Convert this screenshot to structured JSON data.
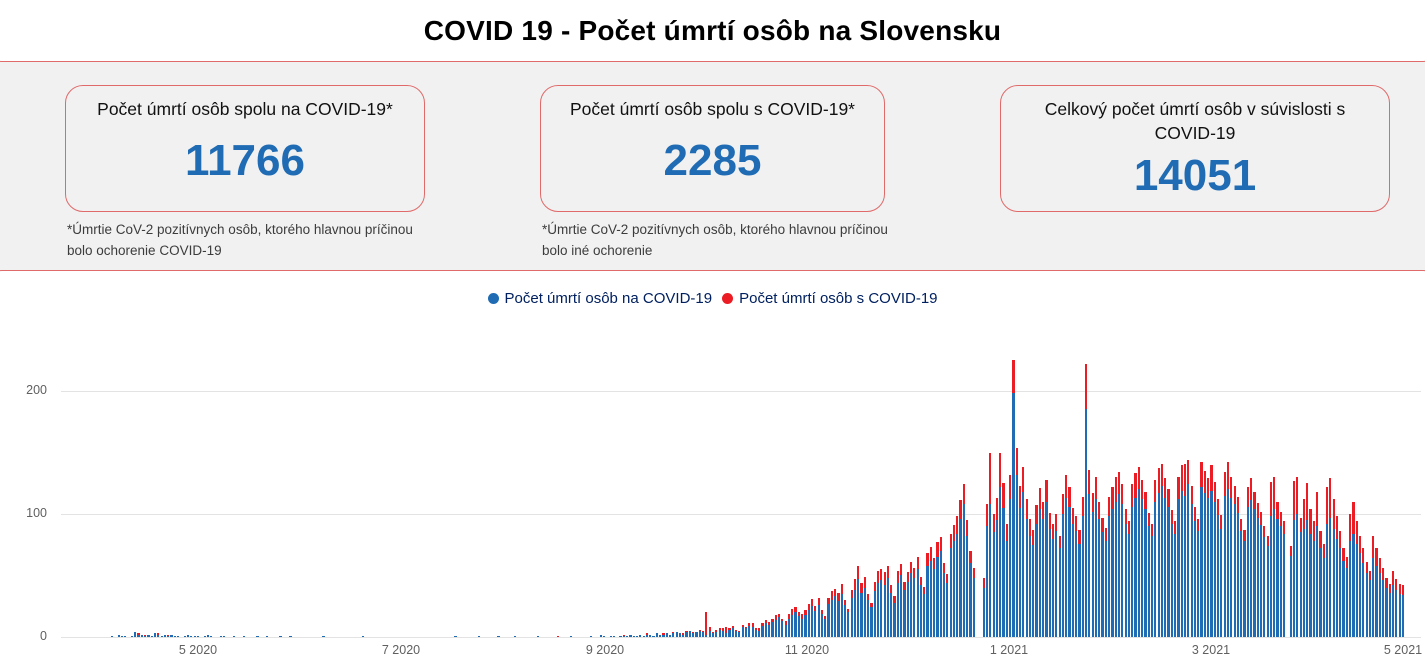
{
  "title": "COVID 19 - Počet úmrtí osôb na Slovensku",
  "cards": [
    {
      "label": "Počet úmrtí osôb spolu na COVID-19*",
      "value": "11766",
      "footnote": "*Úmrtie CoV-2 pozitívnych osôb, ktorého hlavnou príčinou bolo ochorenie COVID-19"
    },
    {
      "label": "Počet úmrtí osôb spolu s COVID-19*",
      "value": "2285",
      "footnote": "*Úmrtie CoV-2 pozitívnych osôb, ktorého hlavnou príčinou bolo iné ochorenie"
    },
    {
      "label": "Celkový počet úmrtí osôb v súvislosti s COVID-19",
      "value": "14051",
      "footnote": ""
    }
  ],
  "colors": {
    "blue": "#1F6CB4",
    "red": "#EC1C24",
    "panel_border": "#E06A6A",
    "background": "#F1F1F1",
    "grid": "#E3E3E3",
    "axis_text": "#606060",
    "legend_text": "#002060"
  },
  "chart_data": {
    "type": "bar",
    "stacked": true,
    "title": "",
    "xlabel": "",
    "ylabel": "",
    "legend_position": "top",
    "grid": true,
    "series_names": [
      "Počet úmrtí osôb na COVID-19",
      "Počet úmrtí osôb s COVID-19"
    ],
    "x_ticks": [
      "5 2020",
      "7 2020",
      "9 2020",
      "11 2020",
      "1 2021",
      "3 2021",
      "5 2021"
    ],
    "y_ticks": [
      0,
      100,
      200
    ],
    "ylim": [
      0,
      233
    ],
    "start_date": "2020-04-01",
    "end_date": "2021-05-01",
    "note": "days = daily stacked values [deaths_on_covid_blue, deaths_with_covid_red], estimated from pixels",
    "days": [
      [
        0,
        0
      ],
      [
        0,
        0
      ],
      [
        0,
        0
      ],
      [
        0,
        0
      ],
      [
        1,
        0
      ],
      [
        0,
        0
      ],
      [
        2,
        0
      ],
      [
        1,
        0
      ],
      [
        1,
        0
      ],
      [
        0,
        0
      ],
      [
        1,
        0
      ],
      [
        4,
        0
      ],
      [
        2,
        1
      ],
      [
        2,
        0
      ],
      [
        1,
        1
      ],
      [
        2,
        0
      ],
      [
        1,
        0
      ],
      [
        3,
        0
      ],
      [
        2,
        1
      ],
      [
        1,
        0
      ],
      [
        2,
        0
      ],
      [
        1,
        1
      ],
      [
        2,
        0
      ],
      [
        1,
        0
      ],
      [
        1,
        0
      ],
      [
        0,
        0
      ],
      [
        1,
        0
      ],
      [
        2,
        0
      ],
      [
        1,
        0
      ],
      [
        1,
        0
      ],
      [
        1,
        0
      ],
      [
        0,
        0
      ],
      [
        1,
        0
      ],
      [
        2,
        0
      ],
      [
        1,
        0
      ],
      [
        0,
        0
      ],
      [
        0,
        0
      ],
      [
        1,
        0
      ],
      [
        1,
        0
      ],
      [
        0,
        0
      ],
      [
        0,
        0
      ],
      [
        1,
        0
      ],
      [
        0,
        0
      ],
      [
        0,
        0
      ],
      [
        1,
        0
      ],
      [
        0,
        0
      ],
      [
        0,
        0
      ],
      [
        0,
        0
      ],
      [
        1,
        0
      ],
      [
        0,
        0
      ],
      [
        0,
        0
      ],
      [
        1,
        0
      ],
      [
        0,
        0
      ],
      [
        0,
        0
      ],
      [
        0,
        0
      ],
      [
        1,
        0
      ],
      [
        0,
        0
      ],
      [
        0,
        0
      ],
      [
        1,
        0
      ],
      [
        0,
        0
      ],
      [
        0,
        0
      ],
      [
        0,
        0
      ],
      [
        0,
        0
      ],
      [
        0,
        0
      ],
      [
        0,
        0
      ],
      [
        0,
        0
      ],
      [
        0,
        0
      ],
      [
        0,
        0
      ],
      [
        1,
        0
      ],
      [
        0,
        0
      ],
      [
        0,
        0
      ],
      [
        0,
        0
      ],
      [
        0,
        0
      ],
      [
        0,
        0
      ],
      [
        0,
        0
      ],
      [
        0,
        0
      ],
      [
        0,
        0
      ],
      [
        0,
        0
      ],
      [
        0,
        0
      ],
      [
        0,
        0
      ],
      [
        1,
        0
      ],
      [
        0,
        0
      ],
      [
        0,
        0
      ],
      [
        0,
        0
      ],
      [
        0,
        0
      ],
      [
        0,
        0
      ],
      [
        0,
        0
      ],
      [
        0,
        0
      ],
      [
        0,
        0
      ],
      [
        0,
        0
      ],
      [
        0,
        0
      ],
      [
        0,
        0
      ],
      [
        0,
        0
      ],
      [
        0,
        0
      ],
      [
        0,
        0
      ],
      [
        0,
        0
      ],
      [
        0,
        0
      ],
      [
        0,
        0
      ],
      [
        0,
        0
      ],
      [
        0,
        0
      ],
      [
        0,
        0
      ],
      [
        0,
        0
      ],
      [
        0,
        0
      ],
      [
        0,
        0
      ],
      [
        0,
        0
      ],
      [
        0,
        0
      ],
      [
        0,
        0
      ],
      [
        0,
        0
      ],
      [
        1,
        0
      ],
      [
        0,
        0
      ],
      [
        0,
        0
      ],
      [
        0,
        0
      ],
      [
        0,
        0
      ],
      [
        0,
        0
      ],
      [
        0,
        0
      ],
      [
        1,
        0
      ],
      [
        0,
        0
      ],
      [
        0,
        0
      ],
      [
        0,
        0
      ],
      [
        0,
        0
      ],
      [
        0,
        0
      ],
      [
        1,
        0
      ],
      [
        0,
        0
      ],
      [
        0,
        0
      ],
      [
        0,
        0
      ],
      [
        0,
        0
      ],
      [
        1,
        0
      ],
      [
        0,
        0
      ],
      [
        0,
        0
      ],
      [
        0,
        0
      ],
      [
        0,
        0
      ],
      [
        0,
        0
      ],
      [
        0,
        0
      ],
      [
        1,
        0
      ],
      [
        0,
        0
      ],
      [
        0,
        0
      ],
      [
        0,
        0
      ],
      [
        0,
        0
      ],
      [
        0,
        0
      ],
      [
        0,
        1
      ],
      [
        0,
        0
      ],
      [
        0,
        0
      ],
      [
        0,
        0
      ],
      [
        1,
        0
      ],
      [
        0,
        0
      ],
      [
        0,
        0
      ],
      [
        0,
        0
      ],
      [
        0,
        0
      ],
      [
        0,
        0
      ],
      [
        1,
        0
      ],
      [
        0,
        0
      ],
      [
        0,
        0
      ],
      [
        2,
        0
      ],
      [
        1,
        0
      ],
      [
        0,
        0
      ],
      [
        1,
        0
      ],
      [
        1,
        0
      ],
      [
        0,
        0
      ],
      [
        1,
        0
      ],
      [
        1,
        1
      ],
      [
        1,
        0
      ],
      [
        2,
        0
      ],
      [
        1,
        0
      ],
      [
        1,
        0
      ],
      [
        2,
        0
      ],
      [
        1,
        0
      ],
      [
        2,
        1
      ],
      [
        2,
        0
      ],
      [
        1,
        0
      ],
      [
        3,
        0
      ],
      [
        2,
        0
      ],
      [
        2,
        1
      ],
      [
        3,
        0
      ],
      [
        2,
        0
      ],
      [
        3,
        1
      ],
      [
        4,
        0
      ],
      [
        3,
        0
      ],
      [
        2,
        1
      ],
      [
        4,
        1
      ],
      [
        5,
        0
      ],
      [
        3,
        1
      ],
      [
        4,
        0
      ],
      [
        5,
        1
      ],
      [
        4,
        1
      ],
      [
        2,
        18
      ],
      [
        5,
        3
      ],
      [
        3,
        1
      ],
      [
        4,
        2
      ],
      [
        6,
        1
      ],
      [
        5,
        2
      ],
      [
        3,
        5
      ],
      [
        6,
        1
      ],
      [
        7,
        2
      ],
      [
        5,
        1
      ],
      [
        4,
        1
      ],
      [
        8,
        2
      ],
      [
        7,
        1
      ],
      [
        9,
        2
      ],
      [
        8,
        3
      ],
      [
        6,
        1
      ],
      [
        5,
        2
      ],
      [
        9,
        2
      ],
      [
        11,
        3
      ],
      [
        10,
        2
      ],
      [
        12,
        3
      ],
      [
        14,
        4
      ],
      [
        16,
        3
      ],
      [
        13,
        2
      ],
      [
        10,
        3
      ],
      [
        15,
        4
      ],
      [
        18,
        5
      ],
      [
        20,
        4
      ],
      [
        17,
        3
      ],
      [
        15,
        4
      ],
      [
        18,
        4
      ],
      [
        22,
        5
      ],
      [
        25,
        6
      ],
      [
        21,
        4
      ],
      [
        26,
        6
      ],
      [
        19,
        3
      ],
      [
        15,
        2
      ],
      [
        27,
        5
      ],
      [
        30,
        7
      ],
      [
        33,
        6
      ],
      [
        29,
        7
      ],
      [
        35,
        8
      ],
      [
        26,
        4
      ],
      [
        20,
        3
      ],
      [
        32,
        6
      ],
      [
        38,
        9
      ],
      [
        47,
        11
      ],
      [
        36,
        8
      ],
      [
        40,
        9
      ],
      [
        30,
        5
      ],
      [
        24,
        4
      ],
      [
        37,
        8
      ],
      [
        44,
        10
      ],
      [
        46,
        9
      ],
      [
        42,
        11
      ],
      [
        48,
        10
      ],
      [
        36,
        6
      ],
      [
        28,
        5
      ],
      [
        44,
        10
      ],
      [
        50,
        9
      ],
      [
        38,
        7
      ],
      [
        45,
        8
      ],
      [
        52,
        9
      ],
      [
        48,
        8
      ],
      [
        55,
        10
      ],
      [
        42,
        7
      ],
      [
        35,
        6
      ],
      [
        58,
        10
      ],
      [
        62,
        11
      ],
      [
        55,
        9
      ],
      [
        65,
        12
      ],
      [
        70,
        11
      ],
      [
        52,
        8
      ],
      [
        44,
        7
      ],
      [
        72,
        12
      ],
      [
        78,
        13
      ],
      [
        84,
        14
      ],
      [
        96,
        15
      ],
      [
        108,
        16
      ],
      [
        82,
        13
      ],
      [
        60,
        10
      ],
      [
        48,
        8
      ],
      [
        0,
        0
      ],
      [
        0,
        0
      ],
      [
        40,
        8
      ],
      [
        90,
        18
      ],
      [
        108,
        42
      ],
      [
        85,
        15
      ],
      [
        95,
        18
      ],
      [
        122,
        28
      ],
      [
        105,
        20
      ],
      [
        78,
        14
      ],
      [
        112,
        20
      ],
      [
        198,
        27
      ],
      [
        132,
        22
      ],
      [
        105,
        18
      ],
      [
        118,
        20
      ],
      [
        96,
        16
      ],
      [
        82,
        14
      ],
      [
        75,
        12
      ],
      [
        92,
        15
      ],
      [
        104,
        17
      ],
      [
        96,
        14
      ],
      [
        110,
        18
      ],
      [
        88,
        13
      ],
      [
        80,
        12
      ],
      [
        86,
        14
      ],
      [
        72,
        10
      ],
      [
        100,
        16
      ],
      [
        113,
        19
      ],
      [
        106,
        16
      ],
      [
        92,
        13
      ],
      [
        86,
        12
      ],
      [
        76,
        11
      ],
      [
        98,
        16
      ],
      [
        185,
        37
      ],
      [
        116,
        20
      ],
      [
        102,
        15
      ],
      [
        112,
        18
      ],
      [
        96,
        14
      ],
      [
        85,
        12
      ],
      [
        78,
        11
      ],
      [
        98,
        16
      ],
      [
        104,
        18
      ],
      [
        110,
        20
      ],
      [
        116,
        18
      ],
      [
        108,
        16
      ],
      [
        92,
        12
      ],
      [
        84,
        10
      ],
      [
        106,
        18
      ],
      [
        113,
        20
      ],
      [
        120,
        18
      ],
      [
        112,
        16
      ],
      [
        104,
        14
      ],
      [
        90,
        11
      ],
      [
        82,
        10
      ],
      [
        110,
        18
      ],
      [
        117,
        20
      ],
      [
        123,
        18
      ],
      [
        113,
        16
      ],
      [
        106,
        14
      ],
      [
        92,
        11
      ],
      [
        84,
        10
      ],
      [
        112,
        18
      ],
      [
        119,
        21
      ],
      [
        115,
        26
      ],
      [
        124,
        20
      ],
      [
        108,
        15
      ],
      [
        94,
        12
      ],
      [
        86,
        10
      ],
      [
        122,
        20
      ],
      [
        117,
        18
      ],
      [
        113,
        16
      ],
      [
        119,
        21
      ],
      [
        110,
        16
      ],
      [
        99,
        13
      ],
      [
        88,
        11
      ],
      [
        115,
        19
      ],
      [
        120,
        22
      ],
      [
        113,
        17
      ],
      [
        108,
        15
      ],
      [
        101,
        13
      ],
      [
        86,
        10
      ],
      [
        78,
        9
      ],
      [
        106,
        16
      ],
      [
        111,
        18
      ],
      [
        104,
        14
      ],
      [
        97,
        12
      ],
      [
        91,
        11
      ],
      [
        81,
        9
      ],
      [
        74,
        8
      ],
      [
        98,
        28
      ],
      [
        104,
        26
      ],
      [
        96,
        14
      ],
      [
        90,
        12
      ],
      [
        84,
        10
      ],
      [
        0,
        0
      ],
      [
        66,
        8
      ],
      [
        95,
        32
      ],
      [
        100,
        30
      ],
      [
        85,
        12
      ],
      [
        88,
        24
      ],
      [
        95,
        30
      ],
      [
        84,
        20
      ],
      [
        78,
        16
      ],
      [
        90,
        28
      ],
      [
        72,
        14
      ],
      [
        64,
        12
      ],
      [
        92,
        30
      ],
      [
        97,
        32
      ],
      [
        88,
        24
      ],
      [
        80,
        18
      ],
      [
        72,
        14
      ],
      [
        62,
        10
      ],
      [
        56,
        9
      ],
      [
        78,
        22
      ],
      [
        84,
        26
      ],
      [
        76,
        18
      ],
      [
        68,
        14
      ],
      [
        60,
        12
      ],
      [
        52,
        9
      ],
      [
        46,
        8
      ],
      [
        64,
        18
      ],
      [
        58,
        14
      ],
      [
        52,
        12
      ],
      [
        46,
        10
      ],
      [
        40,
        8
      ],
      [
        36,
        7
      ],
      [
        42,
        12
      ],
      [
        38,
        9
      ],
      [
        35,
        8
      ],
      [
        34,
        8
      ]
    ]
  }
}
